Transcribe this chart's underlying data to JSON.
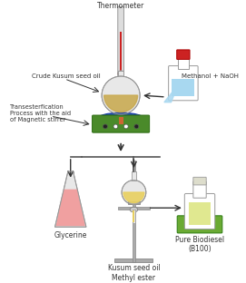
{
  "title": "",
  "bg_color": "#ffffff",
  "labels": {
    "thermometer": "Thermometer",
    "crude_oil": "Crude Kusum seed oil",
    "transesterification": "Transesterfication\nProcess with the aid\nof Magnetic stirrer",
    "methanol": "Methanol + NaOH",
    "glycerine": "Glycerine",
    "methyl_ester": "Kusum seed oil\nMethyl ester",
    "biodiesel": "Pure Biodiesel\n(B100)"
  },
  "colors": {
    "flask_liquid_oil": "#c8a84b",
    "flask_glass": "#e8e8e8",
    "flask_glass_stroke": "#999999",
    "hot_plate_blue": "#2255aa",
    "hot_plate_green": "#4a8a2a",
    "hot_plate_post": "#cc6633",
    "thermometer_tube": "#dddddd",
    "thermometer_liquid": "#cc2222",
    "methanol_bottle_liquid": "#a8d8f0",
    "methanol_stopper": "#cc2222",
    "glycerine_flask": "#f0a0a0",
    "separatory_flask": "#e8d060",
    "biodiesel_bottle": "#e0e890",
    "biodiesel_green_base": "#6aaa33",
    "arrow_color": "#333333",
    "stand_color": "#aaaaaa",
    "label_color": "#333333",
    "line_color": "#555555"
  }
}
